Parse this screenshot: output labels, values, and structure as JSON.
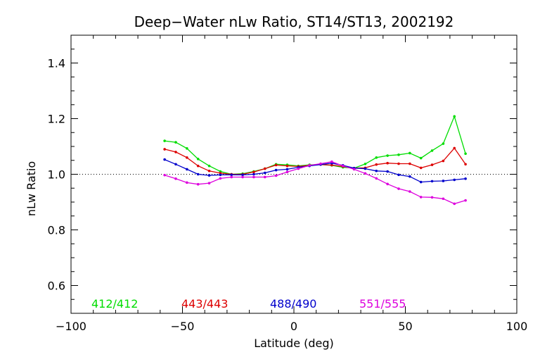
{
  "chart_data": {
    "type": "line",
    "title": "Deep−Water nLw Ratio, ST14/ST13, 2002192",
    "xlabel": "Latitude (deg)",
    "ylabel": "nLw Ratio",
    "xlim": [
      -100,
      100
    ],
    "ylim": [
      0.5,
      1.5
    ],
    "x_ticks": [
      -100,
      -50,
      0,
      50,
      100
    ],
    "x_tick_labels": [
      "−100",
      "−50",
      "0",
      "50",
      "100"
    ],
    "y_ticks": [
      0.6,
      0.8,
      1.0,
      1.2,
      1.4
    ],
    "y_tick_labels": [
      "0.6",
      "0.8",
      "1.0",
      "1.2",
      "1.4"
    ],
    "reference_line": {
      "y": 1.0,
      "style": "dotted"
    },
    "grid": false,
    "legend_position": "bottom, inside plot",
    "x": [
      -58,
      -53,
      -48,
      -43,
      -38,
      -33,
      -28,
      -23,
      -18,
      -13,
      -8,
      -3,
      2,
      7,
      12,
      17,
      22,
      27,
      32,
      37,
      42,
      47,
      52,
      57,
      62,
      67,
      72,
      77
    ],
    "series": [
      {
        "name": "412/412",
        "color": "#00dd00",
        "values": [
          1.12,
          1.115,
          1.093,
          1.055,
          1.03,
          1.01,
          1.0,
          1.002,
          1.01,
          1.02,
          1.036,
          1.034,
          1.03,
          1.034,
          1.035,
          1.032,
          1.025,
          1.022,
          1.037,
          1.06,
          1.067,
          1.07,
          1.076,
          1.058,
          1.085,
          1.11,
          1.208,
          1.074
        ]
      },
      {
        "name": "443/443",
        "color": "#dd0000",
        "values": [
          1.09,
          1.08,
          1.06,
          1.03,
          1.012,
          1.004,
          1.0,
          1.0,
          1.008,
          1.02,
          1.033,
          1.03,
          1.028,
          1.032,
          1.035,
          1.033,
          1.028,
          1.022,
          1.023,
          1.035,
          1.04,
          1.038,
          1.038,
          1.023,
          1.034,
          1.048,
          1.094,
          1.036
        ]
      },
      {
        "name": "488/490",
        "color": "#0000cc",
        "values": [
          1.053,
          1.036,
          1.018,
          1.0,
          0.996,
          0.998,
          0.998,
          0.998,
          1.0,
          1.005,
          1.015,
          1.018,
          1.025,
          1.03,
          1.035,
          1.04,
          1.032,
          1.022,
          1.02,
          1.012,
          1.01,
          0.998,
          0.992,
          0.972,
          0.975,
          0.976,
          0.98,
          0.984
        ]
      },
      {
        "name": "551/555",
        "color": "#dd00dd",
        "values": [
          0.997,
          0.984,
          0.97,
          0.964,
          0.968,
          0.985,
          0.99,
          0.99,
          0.99,
          0.99,
          0.995,
          1.008,
          1.02,
          1.032,
          1.038,
          1.045,
          1.03,
          1.018,
          1.003,
          0.985,
          0.965,
          0.948,
          0.938,
          0.918,
          0.917,
          0.912,
          0.894,
          0.906
        ]
      }
    ]
  }
}
